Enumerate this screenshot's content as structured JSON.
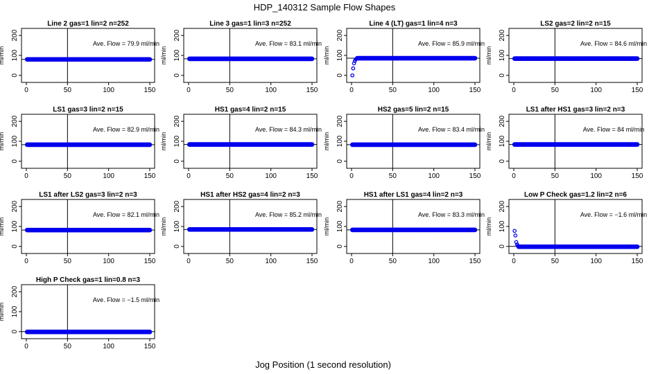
{
  "figure": {
    "title": "HDP_140312  Sample Flow Shapes",
    "xlabel": "Jog Position (1 second resolution)"
  },
  "chart_data": [
    {
      "type": "scatter",
      "title": "Line 2 gas=1 lin=2 n=252",
      "ylabel": "ml/min",
      "annotation": "Ave. Flow =  79.9  ml/min",
      "xlim": [
        0,
        150
      ],
      "ylim": [
        -25,
        225
      ],
      "xticks": [
        0,
        50,
        100,
        150
      ],
      "yticks": [
        0,
        100,
        200
      ],
      "ytick_labels": [
        "0",
        "100",
        "200"
      ],
      "vline": 50,
      "hline": 80,
      "grid": false,
      "series": [
        {
          "x_range": [
            1,
            150
          ],
          "steady": 80,
          "ramp": []
        }
      ]
    },
    {
      "type": "scatter",
      "title": "Line 3 gas=1 lin=3 n=252",
      "ylabel": "ml/min",
      "annotation": "Ave. Flow =  83.1  ml/min",
      "xlim": [
        0,
        150
      ],
      "ylim": [
        -25,
        225
      ],
      "xticks": [
        0,
        50,
        100,
        150
      ],
      "yticks": [
        0,
        100,
        200
      ],
      "ytick_labels": [
        "0",
        "100",
        "200"
      ],
      "vline": 50,
      "hline": 83,
      "grid": false,
      "series": [
        {
          "x_range": [
            1,
            150
          ],
          "steady": 83,
          "ramp": []
        }
      ]
    },
    {
      "type": "scatter",
      "title": "Line 4 (LT) gas=1 lin=4 n=3",
      "ylabel": "ml/min",
      "annotation": "Ave. Flow =  85.9  ml/min",
      "xlim": [
        0,
        150
      ],
      "ylim": [
        -25,
        225
      ],
      "xticks": [
        0,
        50,
        100,
        150
      ],
      "yticks": [
        0,
        100,
        200
      ],
      "ytick_labels": [
        "0",
        "100",
        "200"
      ],
      "vline": 50,
      "hline": 86,
      "grid": false,
      "series": [
        {
          "x_range": [
            1,
            150
          ],
          "steady": 86,
          "ramp": [
            [
              1,
              0
            ],
            [
              2,
              35
            ],
            [
              3,
              60
            ],
            [
              4,
              72
            ],
            [
              5,
              80
            ],
            [
              6,
              83
            ]
          ]
        }
      ]
    },
    {
      "type": "scatter",
      "title": "LS2 gas=2 lin=2 n=15",
      "ylabel": "ml/min",
      "annotation": "Ave. Flow =  84.6  ml/min",
      "xlim": [
        0,
        150
      ],
      "ylim": [
        -25,
        225
      ],
      "xticks": [
        0,
        50,
        100,
        150
      ],
      "yticks": [
        0,
        100,
        200
      ],
      "ytick_labels": [
        "0",
        "100",
        "200"
      ],
      "vline": 50,
      "hline": 84,
      "grid": false,
      "series": [
        {
          "x_range": [
            1,
            150
          ],
          "steady": 84,
          "ramp": []
        }
      ]
    },
    {
      "type": "scatter",
      "title": "LS1 gas=3 lin=2 n=15",
      "ylabel": "ml/min",
      "annotation": "Ave. Flow =  82.9  ml/min",
      "xlim": [
        0,
        150
      ],
      "ylim": [
        -25,
        225
      ],
      "xticks": [
        0,
        50,
        100,
        150
      ],
      "yticks": [
        0,
        100,
        200
      ],
      "ytick_labels": [
        "0",
        "100",
        "200"
      ],
      "vline": 50,
      "hline": 83,
      "grid": false,
      "series": [
        {
          "x_range": [
            1,
            150
          ],
          "steady": 83,
          "ramp": []
        }
      ]
    },
    {
      "type": "scatter",
      "title": "HS1 gas=4 lin=2 n=15",
      "ylabel": "ml/min",
      "annotation": "Ave. Flow =  84.3  ml/min",
      "xlim": [
        0,
        150
      ],
      "ylim": [
        -25,
        225
      ],
      "xticks": [
        0,
        50,
        100,
        150
      ],
      "yticks": [
        0,
        100,
        200
      ],
      "ytick_labels": [
        "0",
        "100",
        "200"
      ],
      "vline": 50,
      "hline": 84,
      "grid": false,
      "series": [
        {
          "x_range": [
            1,
            150
          ],
          "steady": 84,
          "ramp": []
        }
      ]
    },
    {
      "type": "scatter",
      "title": "HS2 gas=5 lin=2 n=15",
      "ylabel": "ml/min",
      "annotation": "Ave. Flow =  83.4  ml/min",
      "xlim": [
        0,
        150
      ],
      "ylim": [
        -25,
        225
      ],
      "xticks": [
        0,
        50,
        100,
        150
      ],
      "yticks": [
        0,
        100,
        200
      ],
      "ytick_labels": [
        "0",
        "100",
        "200"
      ],
      "vline": 50,
      "hline": 83,
      "grid": false,
      "series": [
        {
          "x_range": [
            1,
            150
          ],
          "steady": 83,
          "ramp": []
        }
      ]
    },
    {
      "type": "scatter",
      "title": "LS1 after HS1 gas=3 lin=2 n=3",
      "ylabel": "ml/min",
      "annotation": "Ave. Flow =  84  ml/min",
      "xlim": [
        0,
        150
      ],
      "ylim": [
        -25,
        225
      ],
      "xticks": [
        0,
        50,
        100,
        150
      ],
      "yticks": [
        0,
        100,
        200
      ],
      "ytick_labels": [
        "0",
        "100",
        "200"
      ],
      "vline": 50,
      "hline": 84,
      "grid": false,
      "series": [
        {
          "x_range": [
            1,
            150
          ],
          "steady": 84,
          "ramp": []
        }
      ]
    },
    {
      "type": "scatter",
      "title": "LS1 after LS2 gas=3 lin=2 n=3",
      "ylabel": "ml/min",
      "annotation": "Ave. Flow =  82.1  ml/min",
      "xlim": [
        0,
        150
      ],
      "ylim": [
        -25,
        225
      ],
      "xticks": [
        0,
        50,
        100,
        150
      ],
      "yticks": [
        0,
        100,
        200
      ],
      "ytick_labels": [
        "0",
        "100",
        "200"
      ],
      "vline": 50,
      "hline": 82,
      "grid": false,
      "series": [
        {
          "x_range": [
            1,
            150
          ],
          "steady": 82,
          "ramp": []
        }
      ]
    },
    {
      "type": "scatter",
      "title": "HS1 after HS2 gas=4 lin=2 n=3",
      "ylabel": "ml/min",
      "annotation": "Ave. Flow =  85.2  ml/min",
      "xlim": [
        0,
        150
      ],
      "ylim": [
        -25,
        225
      ],
      "xticks": [
        0,
        50,
        100,
        150
      ],
      "yticks": [
        0,
        100,
        200
      ],
      "ytick_labels": [
        "0",
        "100",
        "200"
      ],
      "vline": 50,
      "hline": 85,
      "grid": false,
      "series": [
        {
          "x_range": [
            1,
            150
          ],
          "steady": 85,
          "ramp": []
        }
      ]
    },
    {
      "type": "scatter",
      "title": "HS1 after LS1 gas=4 lin=2 n=3",
      "ylabel": "ml/min",
      "annotation": "Ave. Flow =  83.3  ml/min",
      "xlim": [
        0,
        150
      ],
      "ylim": [
        -25,
        225
      ],
      "xticks": [
        0,
        50,
        100,
        150
      ],
      "yticks": [
        0,
        100,
        200
      ],
      "ytick_labels": [
        "0",
        "100",
        "200"
      ],
      "vline": 50,
      "hline": 83,
      "grid": false,
      "series": [
        {
          "x_range": [
            1,
            150
          ],
          "steady": 83,
          "ramp": []
        }
      ]
    },
    {
      "type": "scatter",
      "title": "Low P Check gas=1.2 lin=2 n=6",
      "ylabel": "ml/min",
      "annotation": "Ave. Flow =  −1.6  ml/min",
      "xlim": [
        0,
        150
      ],
      "ylim": [
        -25,
        225
      ],
      "xticks": [
        0,
        50,
        100,
        150
      ],
      "yticks": [
        0,
        100,
        200
      ],
      "ytick_labels": [
        "0",
        "100",
        "200"
      ],
      "vline": 50,
      "hline": 0,
      "grid": false,
      "series": [
        {
          "x_range": [
            1,
            150
          ],
          "steady": -1.6,
          "ramp": [
            [
              1,
              78
            ],
            [
              2,
              55
            ],
            [
              3,
              22
            ],
            [
              4,
              10
            ],
            [
              5,
              3
            ]
          ]
        }
      ]
    },
    {
      "type": "scatter",
      "title": "High P Check gas=1 lin=0.8 n=3",
      "ylabel": "ml/min",
      "annotation": "Ave. Flow =  −1.5  ml/min",
      "xlim": [
        0,
        150
      ],
      "ylim": [
        -25,
        225
      ],
      "xticks": [
        0,
        50,
        100,
        150
      ],
      "yticks": [
        0,
        100,
        200
      ],
      "ytick_labels": [
        "0",
        "100",
        "200"
      ],
      "vline": 50,
      "hline": 0,
      "grid": false,
      "series": [
        {
          "x_range": [
            1,
            150
          ],
          "steady": -1.5,
          "ramp": []
        }
      ]
    }
  ],
  "colors": {
    "points": "#0000ee",
    "axes": "#000000",
    "background": "#ffffff"
  }
}
